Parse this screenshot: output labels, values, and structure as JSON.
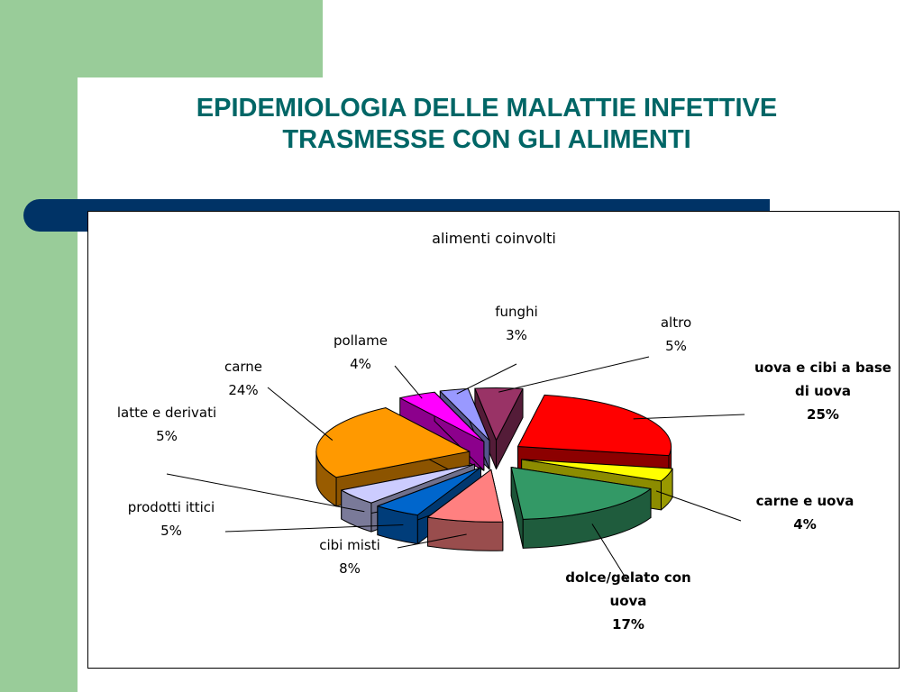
{
  "slide": {
    "title_line1": "EPIDEMIOLOGIA DELLE MALATTIE INFETTIVE",
    "title_line2": "TRASMESSE CON GLI ALIMENTI"
  },
  "colors": {
    "sidebar_green": "#99cc99",
    "title_teal": "#006666",
    "accent_navy": "#003366"
  },
  "chart_data": {
    "type": "pie",
    "title": "alimenti coinvolti",
    "style": "3d exploded pie",
    "slices": [
      {
        "label": "uova e cibi a base di uova",
        "label_lines": [
          "uova e cibi a base",
          "di uova"
        ],
        "percent_text": "25%",
        "value": 25,
        "color": "#ff0000",
        "bold": true
      },
      {
        "label": "carne e uova",
        "label_lines": [
          "carne e uova"
        ],
        "percent_text": "4%",
        "value": 4,
        "color": "#ffff00",
        "bold": true
      },
      {
        "label": "dolce/gelato con uova",
        "label_lines": [
          "dolce/gelato con",
          "uova"
        ],
        "percent_text": "17%",
        "value": 17,
        "color": "#339966",
        "bold": true
      },
      {
        "label": "cibi misti",
        "label_lines": [
          "cibi misti"
        ],
        "percent_text": "8%",
        "value": 8,
        "color": "#ff8080",
        "bold": false
      },
      {
        "label": "prodotti ittici",
        "label_lines": [
          "prodotti ittici"
        ],
        "percent_text": "5%",
        "value": 5,
        "color": "#0066cc",
        "bold": false
      },
      {
        "label": "latte e derivati",
        "label_lines": [
          "latte e derivati"
        ],
        "percent_text": "5%",
        "value": 5,
        "color": "#ccccff",
        "bold": false
      },
      {
        "label": "carne",
        "label_lines": [
          "carne"
        ],
        "percent_text": "24%",
        "value": 24,
        "color": "#ff9900",
        "bold": false
      },
      {
        "label": "pollame",
        "label_lines": [
          "pollame"
        ],
        "percent_text": "4%",
        "value": 4,
        "color": "#ff00ff",
        "bold": false
      },
      {
        "label": "funghi",
        "label_lines": [
          "funghi"
        ],
        "percent_text": "3%",
        "value": 3,
        "color": "#9999ff",
        "bold": false
      },
      {
        "label": "altro",
        "label_lines": [
          "altro"
        ],
        "percent_text": "5%",
        "value": 5,
        "color": "#993366",
        "bold": false
      }
    ]
  }
}
